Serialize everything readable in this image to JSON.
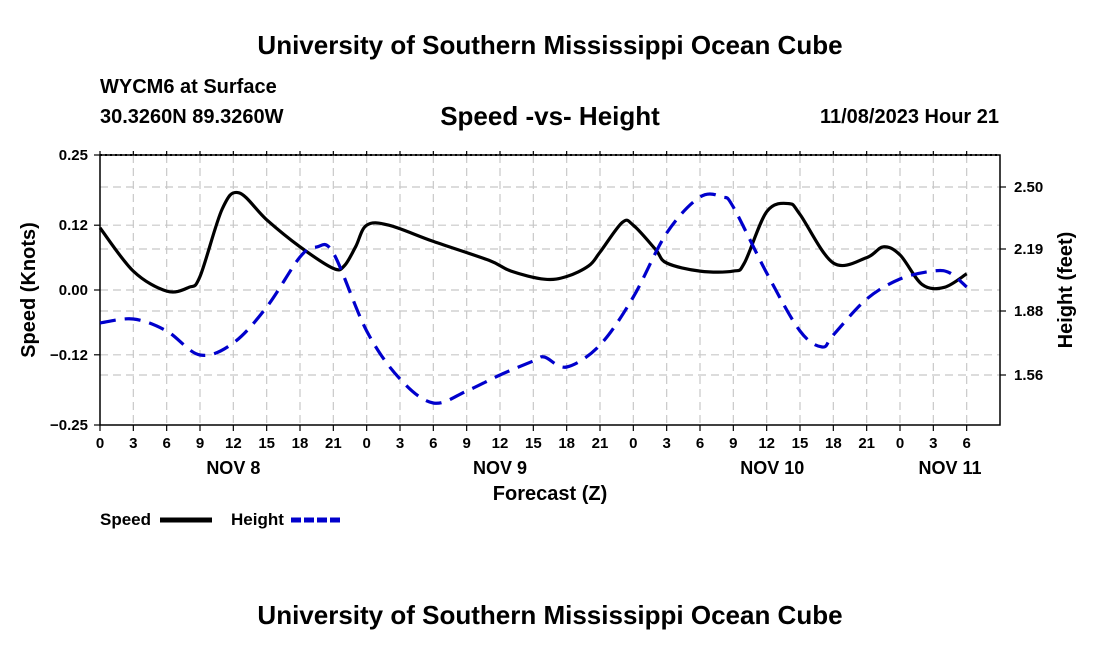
{
  "header": {
    "title_top": "University of Southern Mississippi Ocean Cube",
    "title_bottom": "University of Southern Mississippi Ocean Cube",
    "station": "WYCM6 at Surface",
    "coordinates": "30.3260N  89.3260W",
    "timestamp": "11/08/2023 Hour 21"
  },
  "chart_data": {
    "type": "line",
    "title": "Speed -vs- Height",
    "xlabel": "Forecast (Z)",
    "ylabel": "Speed (Knots)",
    "y2label": "Height (feet)",
    "x_range_hours": [
      0,
      81
    ],
    "ylim": [
      -0.25,
      0.25
    ],
    "y2lim": [
      1.31,
      2.66
    ],
    "grid": true,
    "x_ticks": [
      {
        "hour": 0,
        "label": "0"
      },
      {
        "hour": 3,
        "label": "3"
      },
      {
        "hour": 6,
        "label": "6"
      },
      {
        "hour": 9,
        "label": "9"
      },
      {
        "hour": 12,
        "label": "12"
      },
      {
        "hour": 15,
        "label": "15"
      },
      {
        "hour": 18,
        "label": "18"
      },
      {
        "hour": 21,
        "label": "21"
      },
      {
        "hour": 24,
        "label": "0"
      },
      {
        "hour": 27,
        "label": "3"
      },
      {
        "hour": 30,
        "label": "6"
      },
      {
        "hour": 33,
        "label": "9"
      },
      {
        "hour": 36,
        "label": "12"
      },
      {
        "hour": 39,
        "label": "15"
      },
      {
        "hour": 42,
        "label": "18"
      },
      {
        "hour": 45,
        "label": "21"
      },
      {
        "hour": 48,
        "label": "0"
      },
      {
        "hour": 51,
        "label": "3"
      },
      {
        "hour": 54,
        "label": "6"
      },
      {
        "hour": 57,
        "label": "9"
      },
      {
        "hour": 60,
        "label": "12"
      },
      {
        "hour": 63,
        "label": "15"
      },
      {
        "hour": 66,
        "label": "18"
      },
      {
        "hour": 69,
        "label": "21"
      },
      {
        "hour": 72,
        "label": "0"
      },
      {
        "hour": 75,
        "label": "3"
      },
      {
        "hour": 78,
        "label": "6"
      }
    ],
    "date_labels": [
      {
        "hour": 12,
        "label": "NOV 8"
      },
      {
        "hour": 36,
        "label": "NOV 9"
      },
      {
        "hour": 60.5,
        "label": "NOV 10"
      },
      {
        "hour": 76.5,
        "label": "NOV 11"
      }
    ],
    "y_ticks": [
      {
        "value": 0.25,
        "label": "0.25"
      },
      {
        "value": 0.12,
        "label": "0.12"
      },
      {
        "value": 0.0,
        "label": "0.00"
      },
      {
        "value": -0.12,
        "label": "−0.12"
      },
      {
        "value": -0.25,
        "label": "−0.25"
      }
    ],
    "y2_ticks": [
      {
        "value": 2.5,
        "label": "2.50"
      },
      {
        "value": 2.19,
        "label": "2.19"
      },
      {
        "value": 1.88,
        "label": "1.88"
      },
      {
        "value": 1.56,
        "label": "1.56"
      }
    ],
    "series": [
      {
        "name": "Speed",
        "axis": "left",
        "color": "#000000",
        "style": "solid",
        "points": [
          [
            0,
            0.115
          ],
          [
            3,
            0.035
          ],
          [
            6,
            -0.002
          ],
          [
            8,
            0.005
          ],
          [
            9,
            0.025
          ],
          [
            11,
            0.15
          ],
          [
            12.5,
            0.18
          ],
          [
            15,
            0.13
          ],
          [
            18,
            0.08
          ],
          [
            21,
            0.04
          ],
          [
            22,
            0.045
          ],
          [
            23,
            0.08
          ],
          [
            24,
            0.12
          ],
          [
            26,
            0.12
          ],
          [
            30,
            0.09
          ],
          [
            35,
            0.055
          ],
          [
            37,
            0.035
          ],
          [
            40,
            0.02
          ],
          [
            42,
            0.025
          ],
          [
            44,
            0.045
          ],
          [
            45,
            0.07
          ],
          [
            47,
            0.125
          ],
          [
            48,
            0.12
          ],
          [
            50,
            0.075
          ],
          [
            51,
            0.05
          ],
          [
            54,
            0.035
          ],
          [
            57,
            0.035
          ],
          [
            58,
            0.05
          ],
          [
            60,
            0.145
          ],
          [
            62,
            0.16
          ],
          [
            63,
            0.14
          ],
          [
            66,
            0.05
          ],
          [
            69,
            0.06
          ],
          [
            70.5,
            0.08
          ],
          [
            72,
            0.065
          ],
          [
            74,
            0.01
          ],
          [
            76,
            0.005
          ],
          [
            78,
            0.03
          ]
        ]
      },
      {
        "name": "Height",
        "axis": "right",
        "color": "#0000cc",
        "style": "dashed",
        "points": [
          [
            0,
            1.82
          ],
          [
            3,
            1.84
          ],
          [
            6,
            1.78
          ],
          [
            9,
            1.66
          ],
          [
            12,
            1.72
          ],
          [
            15,
            1.9
          ],
          [
            18,
            2.15
          ],
          [
            19.5,
            2.2
          ],
          [
            21,
            2.17
          ],
          [
            24,
            1.78
          ],
          [
            27,
            1.54
          ],
          [
            30,
            1.42
          ],
          [
            33,
            1.48
          ],
          [
            36,
            1.56
          ],
          [
            39,
            1.63
          ],
          [
            40,
            1.65
          ],
          [
            42,
            1.6
          ],
          [
            45,
            1.71
          ],
          [
            48,
            1.95
          ],
          [
            51,
            2.27
          ],
          [
            54,
            2.45
          ],
          [
            56,
            2.45
          ],
          [
            57,
            2.4
          ],
          [
            60,
            2.07
          ],
          [
            63,
            1.78
          ],
          [
            65,
            1.7
          ],
          [
            66,
            1.76
          ],
          [
            69,
            1.94
          ],
          [
            72,
            2.04
          ],
          [
            75,
            2.08
          ],
          [
            76.5,
            2.07
          ],
          [
            78,
            2.0
          ]
        ]
      }
    ]
  },
  "legend": {
    "items": [
      {
        "label": "Speed",
        "color": "#000000",
        "style": "solid"
      },
      {
        "label": "Height",
        "color": "#0000cc",
        "style": "dashed"
      }
    ]
  }
}
